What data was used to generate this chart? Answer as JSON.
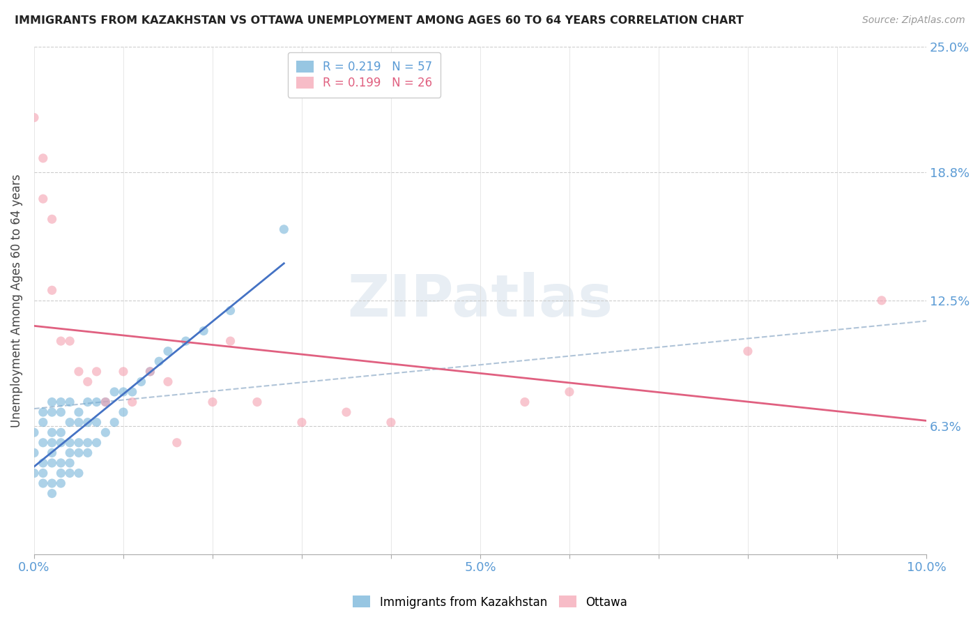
{
  "title": "IMMIGRANTS FROM KAZAKHSTAN VS OTTAWA UNEMPLOYMENT AMONG AGES 60 TO 64 YEARS CORRELATION CHART",
  "source": "Source: ZipAtlas.com",
  "ylabel": "Unemployment Among Ages 60 to 64 years",
  "xlim": [
    0.0,
    0.1
  ],
  "ylim": [
    0.0,
    0.25
  ],
  "ytick_vals": [
    0.063,
    0.125,
    0.188,
    0.25
  ],
  "ytick_labels": [
    "6.3%",
    "12.5%",
    "18.8%",
    "25.0%"
  ],
  "xtick_positions": [
    0.0,
    0.01,
    0.02,
    0.03,
    0.04,
    0.05,
    0.06,
    0.07,
    0.08,
    0.09,
    0.1
  ],
  "xtick_labels": [
    "0.0%",
    "",
    "",
    "",
    "",
    "5.0%",
    "",
    "",
    "",
    "",
    "10.0%"
  ],
  "watermark": "ZIPatlas",
  "kaz_color": "#6baed6",
  "ottawa_color": "#f4a0b0",
  "kaz_trend_color": "#4472c4",
  "ottawa_trend_color": "#e06080",
  "dashed_trend_color": "#b0c4d8",
  "legend_kaz_label": "R = 0.219   N = 57",
  "legend_ottawa_label": "R = 0.199   N = 26",
  "bottom_legend_kaz": "Immigrants from Kazakhstan",
  "bottom_legend_ottawa": "Ottawa",
  "kaz_x": [
    0.0,
    0.0,
    0.0,
    0.001,
    0.001,
    0.001,
    0.001,
    0.001,
    0.001,
    0.002,
    0.002,
    0.002,
    0.002,
    0.002,
    0.002,
    0.002,
    0.002,
    0.003,
    0.003,
    0.003,
    0.003,
    0.003,
    0.003,
    0.003,
    0.004,
    0.004,
    0.004,
    0.004,
    0.004,
    0.004,
    0.005,
    0.005,
    0.005,
    0.005,
    0.005,
    0.006,
    0.006,
    0.006,
    0.006,
    0.007,
    0.007,
    0.007,
    0.008,
    0.008,
    0.009,
    0.009,
    0.01,
    0.01,
    0.011,
    0.012,
    0.013,
    0.014,
    0.015,
    0.017,
    0.019,
    0.022,
    0.028
  ],
  "kaz_y": [
    0.04,
    0.05,
    0.06,
    0.035,
    0.04,
    0.045,
    0.055,
    0.065,
    0.07,
    0.03,
    0.035,
    0.045,
    0.05,
    0.055,
    0.06,
    0.07,
    0.075,
    0.035,
    0.04,
    0.045,
    0.055,
    0.06,
    0.07,
    0.075,
    0.04,
    0.045,
    0.05,
    0.055,
    0.065,
    0.075,
    0.04,
    0.05,
    0.055,
    0.065,
    0.07,
    0.05,
    0.055,
    0.065,
    0.075,
    0.055,
    0.065,
    0.075,
    0.06,
    0.075,
    0.065,
    0.08,
    0.07,
    0.08,
    0.08,
    0.085,
    0.09,
    0.095,
    0.1,
    0.105,
    0.11,
    0.12,
    0.16
  ],
  "ottawa_x": [
    0.0,
    0.001,
    0.001,
    0.002,
    0.002,
    0.003,
    0.004,
    0.005,
    0.006,
    0.007,
    0.008,
    0.01,
    0.011,
    0.013,
    0.015,
    0.016,
    0.02,
    0.022,
    0.025,
    0.03,
    0.035,
    0.04,
    0.055,
    0.06,
    0.08,
    0.095
  ],
  "ottawa_y": [
    0.215,
    0.195,
    0.175,
    0.165,
    0.13,
    0.105,
    0.105,
    0.09,
    0.085,
    0.09,
    0.075,
    0.09,
    0.075,
    0.09,
    0.085,
    0.055,
    0.075,
    0.105,
    0.075,
    0.065,
    0.07,
    0.065,
    0.075,
    0.08,
    0.1,
    0.125
  ]
}
